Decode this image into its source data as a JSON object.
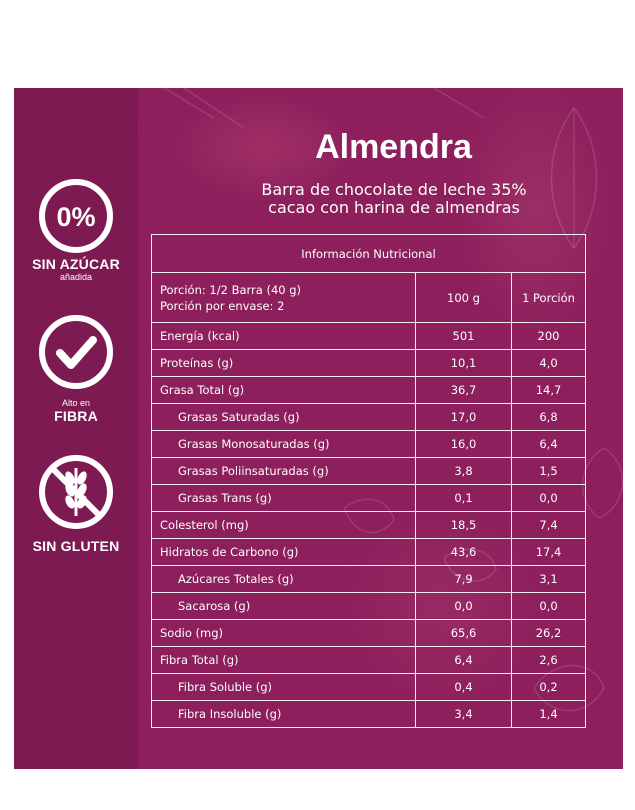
{
  "colors": {
    "panel": "#8c1f5c",
    "sidebar": "#7d1a52",
    "text": "#ffffff"
  },
  "title": "Almendra",
  "subtitle_line1": "Barra de chocolate de leche 35%",
  "subtitle_line2": "cacao con harina de almendras",
  "badges": [
    {
      "icon": "zero-percent-icon",
      "symbol": "0%",
      "line1": "SIN AZÚCAR",
      "line2": "añadida"
    },
    {
      "icon": "checkmark-icon",
      "line1": "Alto en",
      "line2": "FIBRA"
    },
    {
      "icon": "no-wheat-icon",
      "line1": "SIN GLUTEN"
    }
  ],
  "table": {
    "header": "Información Nutricional",
    "portion_line1": "Porción: 1/2 Barra (40 g)",
    "portion_line2": "Porción por envase: 2",
    "col1": "100 g",
    "col2": "1 Porción",
    "rows": [
      {
        "label": "Energía (kcal)",
        "v100": "501",
        "vpor": "200"
      },
      {
        "label": "Proteínas (g)",
        "v100": "10,1",
        "vpor": "4,0"
      },
      {
        "label": "Grasa Total (g)",
        "v100": "36,7",
        "vpor": "14,7"
      },
      {
        "label": "Grasas Saturadas (g)",
        "v100": "17,0",
        "vpor": "6,8"
      },
      {
        "label": "Grasas Monosaturadas (g)",
        "v100": "16,0",
        "vpor": "6,4"
      },
      {
        "label": "Grasas Poliinsaturadas (g)",
        "v100": "3,8",
        "vpor": "1,5"
      },
      {
        "label": "Grasas Trans (g)",
        "v100": "0,1",
        "vpor": "0,0"
      },
      {
        "label": "Colesterol (mg)",
        "v100": "18,5",
        "vpor": "7,4"
      },
      {
        "label": "Hidratos de Carbono (g)",
        "v100": "43,6",
        "vpor": "17,4"
      },
      {
        "label": "Azúcares Totales (g)",
        "v100": "7,9",
        "vpor": "3,1"
      },
      {
        "label": "Sacarosa (g)",
        "v100": "0,0",
        "vpor": "0,0"
      },
      {
        "label": "Sodio (mg)",
        "v100": "65,6",
        "vpor": "26,2"
      },
      {
        "label": "Fibra Total (g)",
        "v100": "6,4",
        "vpor": "2,6"
      },
      {
        "label": "Fibra Soluble (g)",
        "v100": "0,4",
        "vpor": "0,2"
      },
      {
        "label": "Fibra Insoluble (g)",
        "v100": "3,4",
        "vpor": "1,4"
      }
    ]
  }
}
